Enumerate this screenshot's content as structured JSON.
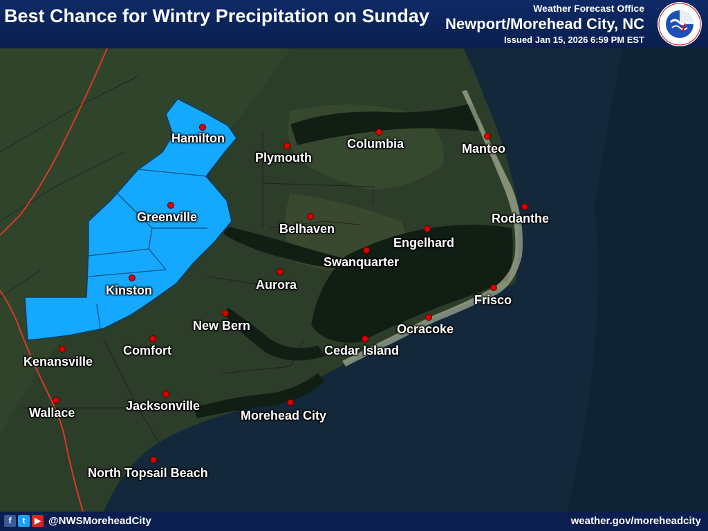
{
  "header": {
    "title": "Best Chance for Wintry Precipitation on Sunday",
    "office_line": "Weather Forecast Office",
    "office_name": "Newport/Morehead City, NC",
    "issued": "Issued Jan 15, 2026 6:59 PM EST",
    "logo_text": "NATIONAL WEATHER SERVICE"
  },
  "map": {
    "highlight_color": "#14a8ff",
    "highlighted_area": "Best Chance for Wintry Precipitation",
    "cities": [
      {
        "label": "Hamilton"
      },
      {
        "label": "Plymouth"
      },
      {
        "label": "Columbia"
      },
      {
        "label": "Manteo"
      },
      {
        "label": "Greenville"
      },
      {
        "label": "Belhaven"
      },
      {
        "label": "Rodanthe"
      },
      {
        "label": "Engelhard"
      },
      {
        "label": "Swanquarter"
      },
      {
        "label": "Aurora"
      },
      {
        "label": "Kinston"
      },
      {
        "label": "Frisco"
      },
      {
        "label": "New Bern"
      },
      {
        "label": "Ocracoke"
      },
      {
        "label": "Comfort"
      },
      {
        "label": "Cedar Island"
      },
      {
        "label": "Kenansville"
      },
      {
        "label": "Jacksonville"
      },
      {
        "label": "Wallace"
      },
      {
        "label": "Morehead City"
      },
      {
        "label": "North Topsail Beach"
      }
    ]
  },
  "footer": {
    "social_icons": [
      "facebook-icon",
      "twitter-icon",
      "youtube-icon"
    ],
    "handle": "@NWSMoreheadCity",
    "website": "weather.gov/moreheadcity"
  }
}
